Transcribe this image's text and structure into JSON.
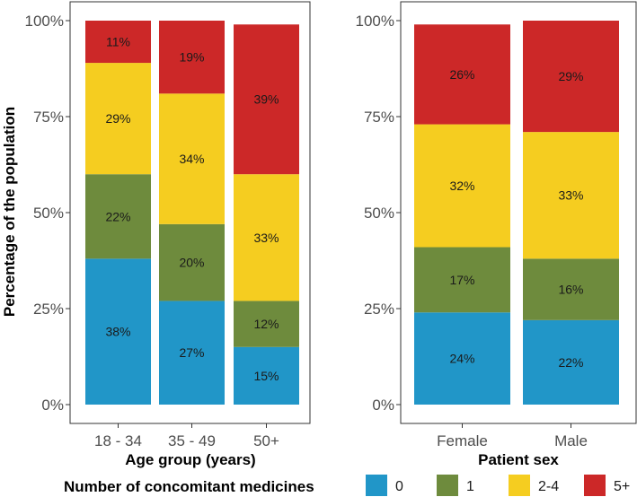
{
  "chart_data": {
    "type": "bar",
    "stacked": true,
    "ylabel": "Percentage of the population",
    "yticks": [
      "0%",
      "25%",
      "50%",
      "75%",
      "100%"
    ],
    "ylim": [
      0,
      100
    ],
    "legend": {
      "title": "Number of concomitant medicines",
      "position": "bottom",
      "entries": [
        {
          "label": "0",
          "color": "#2196C8"
        },
        {
          "label": "1",
          "color": "#6E8B3D"
        },
        {
          "label": "2-4",
          "color": "#F5CD20"
        },
        {
          "label": "5+",
          "color": "#CC2828"
        }
      ]
    },
    "panels": [
      {
        "xlabel": "Age group (years)",
        "categories": [
          "18 - 34",
          "35 - 49",
          "50+"
        ],
        "series": [
          {
            "name": "0",
            "values": [
              38,
              27,
              15
            ]
          },
          {
            "name": "1",
            "values": [
              22,
              20,
              12
            ]
          },
          {
            "name": "2-4",
            "values": [
              29,
              34,
              33
            ]
          },
          {
            "name": "5+",
            "values": [
              11,
              19,
              39
            ]
          }
        ]
      },
      {
        "xlabel": "Patient sex",
        "categories": [
          "Female",
          "Male"
        ],
        "series": [
          {
            "name": "0",
            "values": [
              24,
              22
            ]
          },
          {
            "name": "1",
            "values": [
              17,
              16
            ]
          },
          {
            "name": "2-4",
            "values": [
              32,
              33
            ]
          },
          {
            "name": "5+",
            "values": [
              26,
              29
            ]
          }
        ]
      }
    ]
  }
}
